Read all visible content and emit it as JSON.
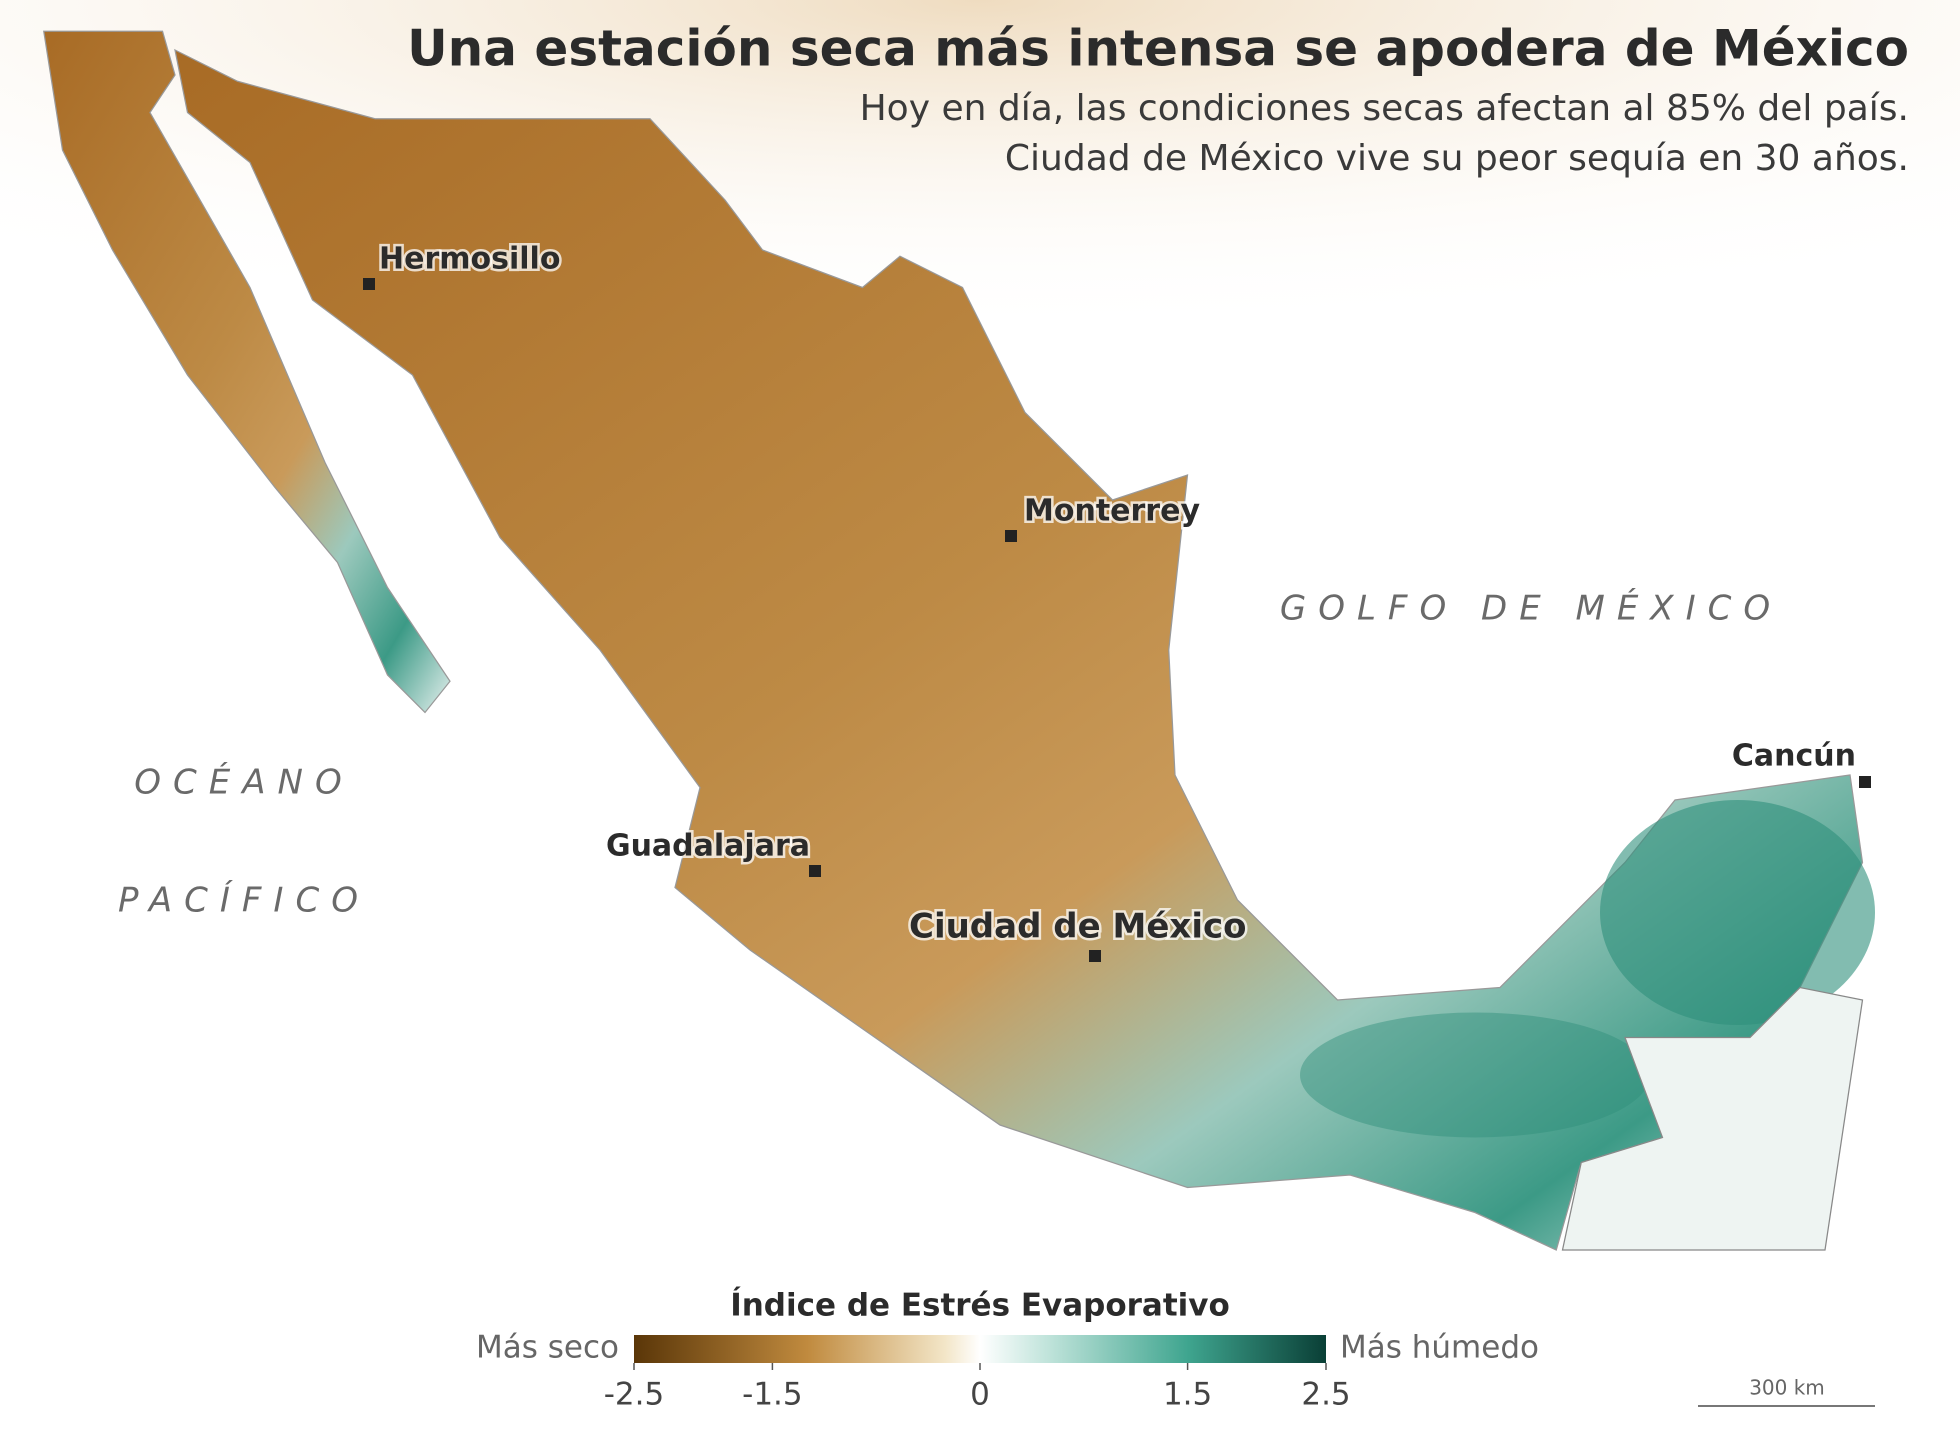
{
  "header": {
    "title": "Una estación seca más intensa se apodera de México",
    "subtitle": [
      "Hoy en día, las condiciones secas afectan al 85% del país.",
      "Ciudad de México vive su peor sequía en 30 años."
    ]
  },
  "map": {
    "cities": [
      "Hermosillo",
      "Monterrey",
      "Guadalajara",
      "Ciudad de México",
      "Cancún"
    ],
    "water": [
      "GOLFO DE MÉXICO",
      "OCÉANO",
      "PACÍFICO"
    ],
    "scale_bar": "300 km"
  },
  "legend": {
    "title": "Índice de Estrés Evaporativo",
    "low_label": "Más seco",
    "high_label": "Más húmedo",
    "range": [
      -2.5,
      2.5
    ],
    "ticks": [
      -2.5,
      -1.5,
      0,
      1.5,
      2.5
    ]
  }
}
